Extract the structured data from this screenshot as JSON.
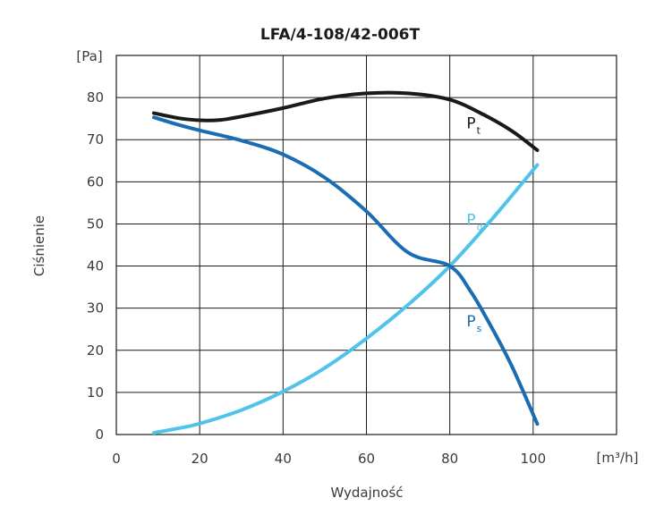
{
  "chart_data": {
    "type": "line",
    "title": "LFA/4-108/42-006T",
    "xlabel": "Wydajność",
    "ylabel": "Ciśnienie",
    "x_unit": "[m³/h]",
    "y_unit": "[Pa]",
    "xlim": [
      0,
      120
    ],
    "ylim": [
      0,
      90
    ],
    "x_ticks": [
      "0",
      "20",
      "40",
      "60",
      "80",
      "100"
    ],
    "x_tick_values": [
      0,
      20,
      40,
      60,
      80,
      100
    ],
    "y_ticks": [
      "0",
      "10",
      "20",
      "30",
      "40",
      "50",
      "60",
      "70",
      "80"
    ],
    "y_tick_values": [
      0,
      10,
      20,
      30,
      40,
      50,
      60,
      70,
      80
    ],
    "grid": true,
    "series": [
      {
        "name": "Pt",
        "label_main": "P",
        "label_sub": "t",
        "label_at": [
          81,
          74
        ],
        "color": "#1a1a1a",
        "x": [
          9,
          15,
          20,
          25,
          30,
          40,
          50,
          60,
          70,
          80,
          88,
          95,
          101
        ],
        "y": [
          76.3,
          75.1,
          74.6,
          74.7,
          75.5,
          77.5,
          79.8,
          81.0,
          81.0,
          79.5,
          76.0,
          72.0,
          67.5
        ]
      },
      {
        "name": "Pd",
        "label_main": "P",
        "label_sub": "d",
        "label_at": [
          81,
          51
        ],
        "color": "#4fc3ea",
        "x": [
          9,
          15,
          20,
          30,
          40,
          50,
          60,
          70,
          80,
          90,
          101
        ],
        "y": [
          0.4,
          1.5,
          2.6,
          5.8,
          10.2,
          15.8,
          22.8,
          30.8,
          40.0,
          51.0,
          64.0
        ]
      },
      {
        "name": "Ps",
        "label_main": "P",
        "label_sub": "s",
        "label_at": [
          81,
          27
        ],
        "color": "#1a6db2",
        "x": [
          9,
          15,
          20,
          30,
          40,
          50,
          60,
          70,
          80,
          85,
          90,
          95,
          101
        ],
        "y": [
          75.3,
          73.5,
          72.2,
          69.8,
          66.5,
          61.0,
          53.0,
          43.2,
          40.0,
          34.0,
          25.5,
          16.0,
          2.5
        ]
      }
    ]
  }
}
